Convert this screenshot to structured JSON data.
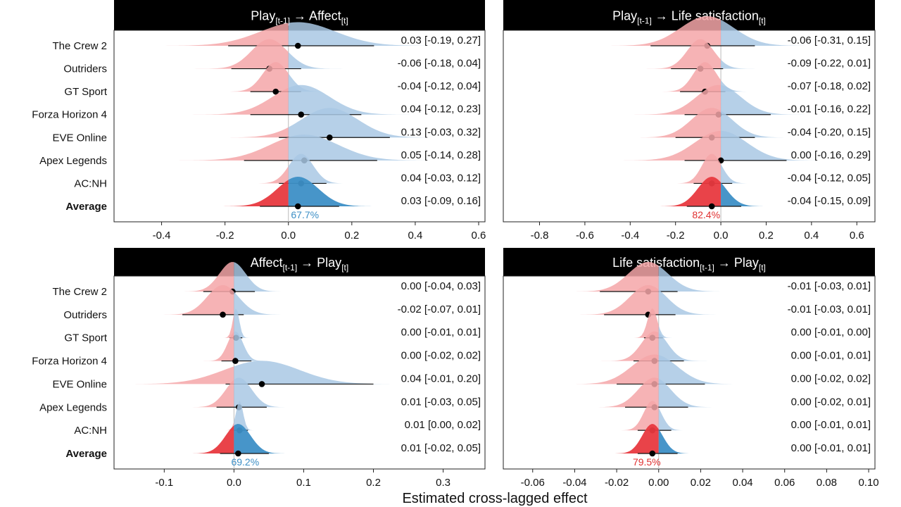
{
  "figure": {
    "xlabel": "Estimated cross-lagged effect"
  },
  "colors": {
    "negative_fill": "#f4a6a8",
    "positive_fill": "#a9c8e4",
    "average_negative": "#e8393f",
    "average_positive": "#3d8fc6",
    "blue_text": "#3d8fc6",
    "red_text": "#e03030",
    "header_bg": "#000000",
    "header_text": "#ffffff"
  },
  "chart_data": [
    {
      "type": "ridgeline",
      "title_main": "Play",
      "title_sub": "[t-1]",
      "title_mid": " → Affect",
      "title_sub2": "[t]",
      "xlim": [
        -0.55,
        0.62
      ],
      "ticks": [
        -0.4,
        -0.2,
        0.0,
        0.2,
        0.4,
        0.6
      ],
      "tick_labels": [
        "-0.4",
        "-0.2",
        "0.0",
        "0.2",
        "0.4",
        "0.6"
      ],
      "show_rows": true,
      "rows": [
        {
          "name": "The Crew 2",
          "est": 0.03,
          "lo": -0.19,
          "hi": 0.27,
          "label": "0.03 [-0.19, 0.27]"
        },
        {
          "name": "Outriders",
          "est": -0.06,
          "lo": -0.18,
          "hi": 0.04,
          "label": "-0.06 [-0.18, 0.04]"
        },
        {
          "name": "GT Sport",
          "est": -0.04,
          "lo": -0.12,
          "hi": 0.04,
          "label": "-0.04 [-0.12, 0.04]"
        },
        {
          "name": "Forza Horizon 4",
          "est": 0.04,
          "lo": -0.12,
          "hi": 0.23,
          "label": "0.04 [-0.12, 0.23]"
        },
        {
          "name": "EVE Online",
          "est": 0.13,
          "lo": -0.03,
          "hi": 0.32,
          "label": "0.13 [-0.03, 0.32]"
        },
        {
          "name": "Apex Legends",
          "est": 0.05,
          "lo": -0.14,
          "hi": 0.28,
          "label": "0.05 [-0.14, 0.28]"
        },
        {
          "name": "AC:NH",
          "est": 0.04,
          "lo": -0.03,
          "hi": 0.12,
          "label": "0.04 [-0.03, 0.12]"
        },
        {
          "name": "Average",
          "est": 0.03,
          "lo": -0.09,
          "hi": 0.16,
          "label": "0.03 [-0.09, 0.16]",
          "average": true
        }
      ],
      "prob_label": "67.7%",
      "prob_color": "blue"
    },
    {
      "type": "ridgeline",
      "title_main": "Play",
      "title_sub": "[t-1]",
      "title_mid": " → Life satisfaction",
      "title_sub2": "[t]",
      "xlim": [
        -0.96,
        0.68
      ],
      "ticks": [
        -0.8,
        -0.6,
        -0.4,
        -0.2,
        0.0,
        0.2,
        0.4,
        0.6
      ],
      "tick_labels": [
        "-0.8",
        "-0.6",
        "-0.4",
        "-0.2",
        "0.0",
        "0.2",
        "0.4",
        "0.6"
      ],
      "show_rows": false,
      "rows": [
        {
          "name": "The Crew 2",
          "est": -0.06,
          "lo": -0.31,
          "hi": 0.15,
          "label": "-0.06 [-0.31, 0.15]"
        },
        {
          "name": "Outriders",
          "est": -0.09,
          "lo": -0.22,
          "hi": 0.01,
          "label": "-0.09 [-0.22, 0.01]"
        },
        {
          "name": "GT Sport",
          "est": -0.07,
          "lo": -0.18,
          "hi": 0.02,
          "label": "-0.07 [-0.18, 0.02]"
        },
        {
          "name": "Forza Horizon 4",
          "est": -0.01,
          "lo": -0.16,
          "hi": 0.22,
          "label": "-0.01 [-0.16, 0.22]"
        },
        {
          "name": "EVE Online",
          "est": -0.04,
          "lo": -0.2,
          "hi": 0.15,
          "label": "-0.04 [-0.20, 0.15]"
        },
        {
          "name": "Apex Legends",
          "est": 0.0,
          "lo": -0.16,
          "hi": 0.29,
          "label": "0.00 [-0.16, 0.29]"
        },
        {
          "name": "AC:NH",
          "est": -0.04,
          "lo": -0.12,
          "hi": 0.05,
          "label": "-0.04 [-0.12, 0.05]"
        },
        {
          "name": "Average",
          "est": -0.04,
          "lo": -0.15,
          "hi": 0.09,
          "label": "-0.04 [-0.15, 0.09]",
          "average": true
        }
      ],
      "prob_label": "82.4%",
      "prob_color": "red"
    },
    {
      "type": "ridgeline",
      "title_main": "Affect",
      "title_sub": "[t-1]",
      "title_mid": " → Play",
      "title_sub2": "[t]",
      "xlim": [
        -0.172,
        0.36
      ],
      "ticks": [
        -0.1,
        0.0,
        0.1,
        0.2,
        0.3
      ],
      "tick_labels": [
        "-0.1",
        "0.0",
        "0.1",
        "0.2",
        "0.3"
      ],
      "show_rows": true,
      "rows": [
        {
          "name": "The Crew 2",
          "est": -0.002,
          "lo": -0.044,
          "hi": 0.03,
          "label": "0.00 [-0.04, 0.03]"
        },
        {
          "name": "Outriders",
          "est": -0.016,
          "lo": -0.074,
          "hi": 0.014,
          "label": "-0.02 [-0.07, 0.01]"
        },
        {
          "name": "GT Sport",
          "est": 0.003,
          "lo": -0.006,
          "hi": 0.012,
          "label": "0.00 [-0.01, 0.01]"
        },
        {
          "name": "Forza Horizon 4",
          "est": 0.002,
          "lo": -0.018,
          "hi": 0.025,
          "label": "0.00 [-0.02, 0.02]"
        },
        {
          "name": "EVE Online",
          "est": 0.04,
          "lo": -0.012,
          "hi": 0.2,
          "label": "0.04 [-0.01, 0.20]"
        },
        {
          "name": "Apex Legends",
          "est": 0.007,
          "lo": -0.025,
          "hi": 0.047,
          "label": "0.01 [-0.03, 0.05]"
        },
        {
          "name": "AC:NH",
          "est": 0.008,
          "lo": 0.0,
          "hi": 0.02,
          "label": "0.01 [0.00, 0.02]"
        },
        {
          "name": "Average",
          "est": 0.006,
          "lo": -0.02,
          "hi": 0.05,
          "label": "0.01 [-0.02, 0.05]",
          "average": true
        }
      ],
      "prob_label": "69.2%",
      "prob_color": "blue"
    },
    {
      "type": "ridgeline",
      "title_main": "Life satisfaction",
      "title_sub": "[t-1]",
      "title_mid": " → Play",
      "title_sub2": "[t]",
      "xlim": [
        -0.074,
        0.103
      ],
      "ticks": [
        -0.06,
        -0.04,
        -0.02,
        0.0,
        0.02,
        0.04,
        0.06,
        0.08,
        0.1
      ],
      "tick_labels": [
        "-0.06",
        "-0.04",
        "-0.02",
        "0.00",
        "0.02",
        "0.04",
        "0.06",
        "0.08",
        "0.10"
      ],
      "show_rows": false,
      "rows": [
        {
          "name": "The Crew 2",
          "est": -0.005,
          "lo": -0.028,
          "hi": 0.009,
          "label": "-0.01 [-0.03, 0.01]"
        },
        {
          "name": "Outriders",
          "est": -0.005,
          "lo": -0.026,
          "hi": 0.008,
          "label": "-0.01 [-0.03, 0.01]"
        },
        {
          "name": "GT Sport",
          "est": -0.003,
          "lo": -0.007,
          "hi": 0.002,
          "label": "0.00 [-0.01, 0.00]"
        },
        {
          "name": "Forza Horizon 4",
          "est": -0.002,
          "lo": -0.012,
          "hi": 0.012,
          "label": "0.00 [-0.01, 0.01]"
        },
        {
          "name": "EVE Online",
          "est": -0.002,
          "lo": -0.02,
          "hi": 0.022,
          "label": "0.00 [-0.02, 0.02]"
        },
        {
          "name": "Apex Legends",
          "est": -0.002,
          "lo": -0.016,
          "hi": 0.014,
          "label": "0.00 [-0.02, 0.01]"
        },
        {
          "name": "AC:NH",
          "est": -0.003,
          "lo": -0.01,
          "hi": 0.006,
          "label": "0.00 [-0.01, 0.01]"
        },
        {
          "name": "Average",
          "est": -0.003,
          "lo": -0.01,
          "hi": 0.009,
          "label": "0.00 [-0.01, 0.01]",
          "average": true
        }
      ],
      "prob_label": "79.5%",
      "prob_color": "red"
    }
  ]
}
